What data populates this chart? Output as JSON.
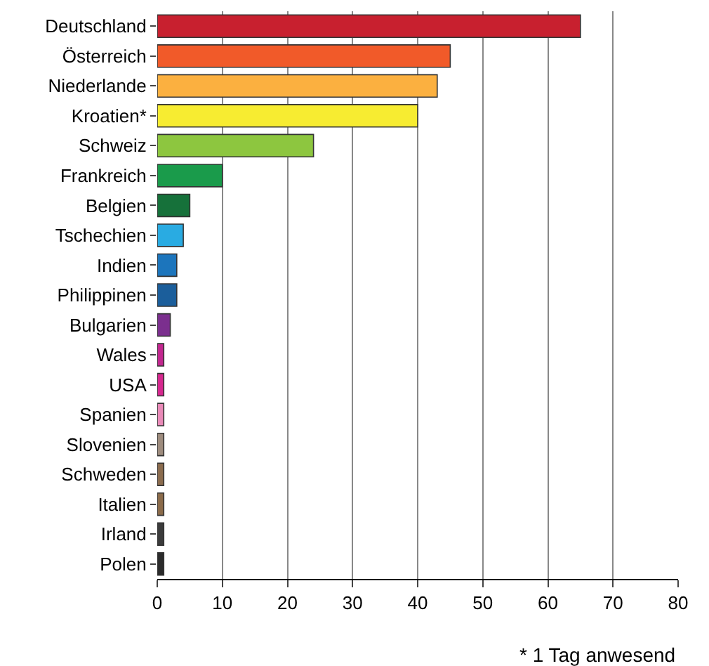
{
  "chart_data": {
    "type": "bar",
    "orientation": "horizontal",
    "categories": [
      "Deutschland",
      "Österreich",
      "Niederlande",
      "Kroatien*",
      "Schweiz",
      "Frankreich",
      "Belgien",
      "Tschechien",
      "Indien",
      "Philippinen",
      "Bulgarien",
      "Wales",
      "USA",
      "Spanien",
      "Slovenien",
      "Schweden",
      "Italien",
      "Irland",
      "Polen"
    ],
    "values": [
      65,
      45,
      43,
      40,
      24,
      10,
      5,
      4,
      3,
      3,
      2,
      1,
      1,
      1,
      1,
      1,
      1,
      1,
      1
    ],
    "colors": [
      "#c8202f",
      "#f15a29",
      "#fbb040",
      "#f7ec31",
      "#8dc63f",
      "#1a9b4b",
      "#16713a",
      "#29abe2",
      "#1c75bc",
      "#1b5e9b",
      "#7b2f8e",
      "#c2278f",
      "#d6288f",
      "#e98ab8",
      "#9e8c7e",
      "#8b6c4e",
      "#8b6b4a",
      "#3b3b3b",
      "#2b2b2b"
    ],
    "xlim": [
      0,
      80
    ],
    "xticks": [
      0,
      10,
      20,
      30,
      40,
      50,
      60,
      70,
      80
    ],
    "grid": "x",
    "annotations": [
      "* 1 Tag anwesend"
    ]
  }
}
